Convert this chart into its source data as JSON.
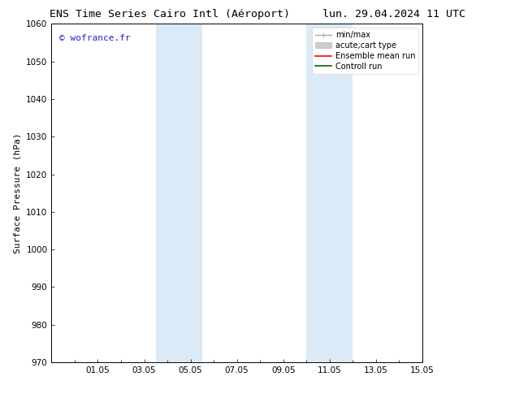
{
  "title_left": "ENS Time Series Cairo Intl (Aéroport)",
  "title_right": "lun. 29.04.2024 11 UTC",
  "ylabel": "Surface Pressure (hPa)",
  "ylim": [
    970,
    1060
  ],
  "yticks": [
    970,
    980,
    990,
    1000,
    1010,
    1020,
    1030,
    1040,
    1050,
    1060
  ],
  "xlim": [
    0,
    16
  ],
  "xtick_labels": [
    "01.05",
    "03.05",
    "05.05",
    "07.05",
    "09.05",
    "11.05",
    "13.05",
    "15.05"
  ],
  "xtick_positions": [
    2,
    4,
    6,
    8,
    10,
    12,
    14,
    16
  ],
  "shaded_bands": [
    {
      "x_start": 4.5,
      "x_end": 5.5
    },
    {
      "x_start": 5.5,
      "x_end": 6.5
    },
    {
      "x_start": 11.0,
      "x_end": 12.0
    },
    {
      "x_start": 12.0,
      "x_end": 13.0
    }
  ],
  "shaded_color": "#dbeaf7",
  "background_color": "#ffffff",
  "watermark": "© wofrance.fr",
  "watermark_color": "#2222cc",
  "legend_entries": [
    {
      "label": "min/max",
      "color": "#aaaaaa",
      "lw": 1.0,
      "style": "minmax"
    },
    {
      "label": "acute;cart type",
      "color": "#cccccc",
      "lw": 5,
      "style": "bar"
    },
    {
      "label": "Ensemble mean run",
      "color": "#ff0000",
      "lw": 1.2,
      "style": "line"
    },
    {
      "label": "Controll run",
      "color": "#006600",
      "lw": 1.2,
      "style": "line"
    }
  ],
  "title_fontsize": 9.5,
  "tick_fontsize": 7.5,
  "ylabel_fontsize": 8,
  "legend_fontsize": 7,
  "watermark_fontsize": 8
}
